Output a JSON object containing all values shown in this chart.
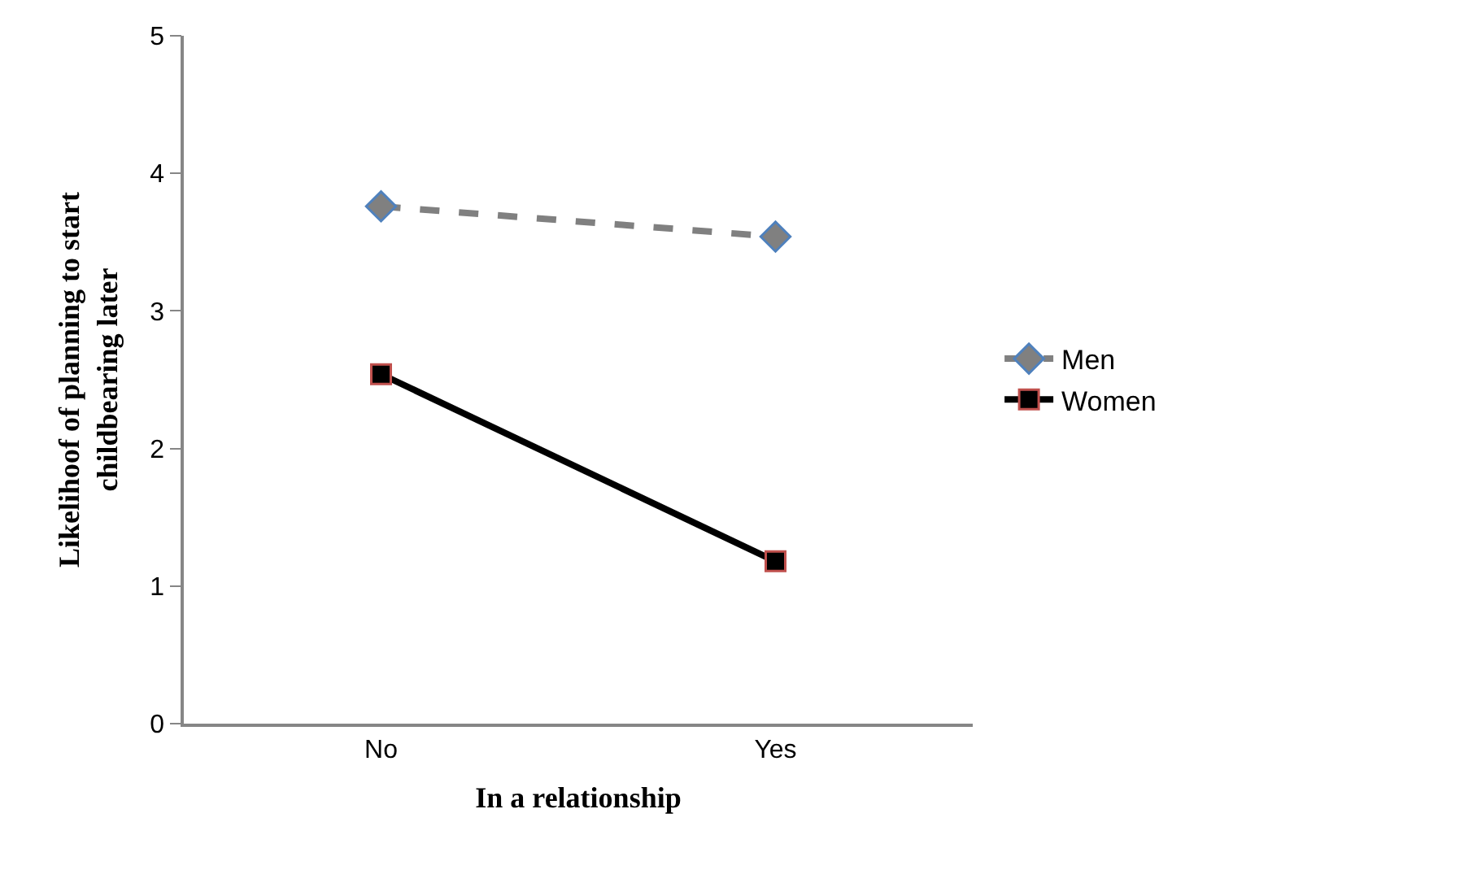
{
  "chart_data": {
    "type": "line",
    "xlabel": "In a relationship",
    "ylabel": "Likelihoof of planning to start childbearing later",
    "categories": [
      "No",
      "Yes"
    ],
    "series": [
      {
        "name": "Men",
        "color": "#808080",
        "values": [
          3.76,
          3.54
        ],
        "line_style": "dashed",
        "marker": "diamond"
      },
      {
        "name": "Women",
        "color": "#000000",
        "values": [
          2.54,
          1.18
        ],
        "line_style": "solid",
        "marker": "square"
      }
    ],
    "ylim": [
      0,
      5
    ],
    "yticks": [
      0,
      1,
      2,
      3,
      4,
      5
    ],
    "legend": "right"
  }
}
